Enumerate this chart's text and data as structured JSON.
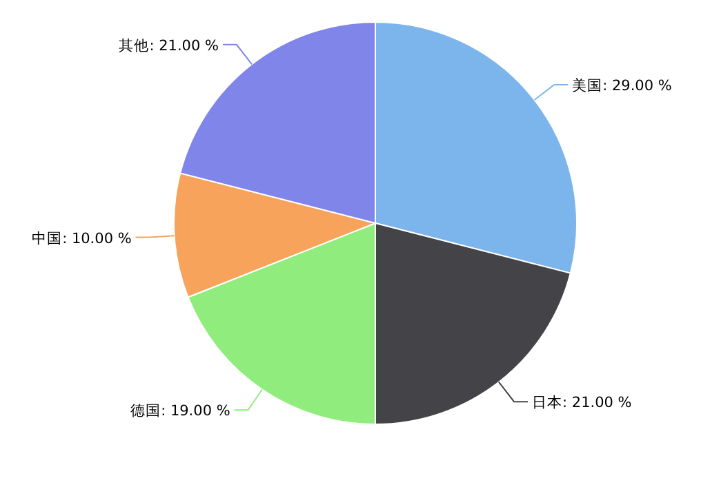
{
  "chart_data": {
    "type": "pie",
    "categories": [
      "美国",
      "日本",
      "德国",
      "中国",
      "其他"
    ],
    "values": [
      29,
      21,
      19,
      10,
      21
    ],
    "value_labels": [
      "29.00 %",
      "21.00 %",
      "19.00 %",
      "10.00 %",
      "21.00 %"
    ],
    "colors": [
      "#7cb5ec",
      "#434348",
      "#90ed7d",
      "#f7a35c",
      "#8085e9"
    ]
  }
}
